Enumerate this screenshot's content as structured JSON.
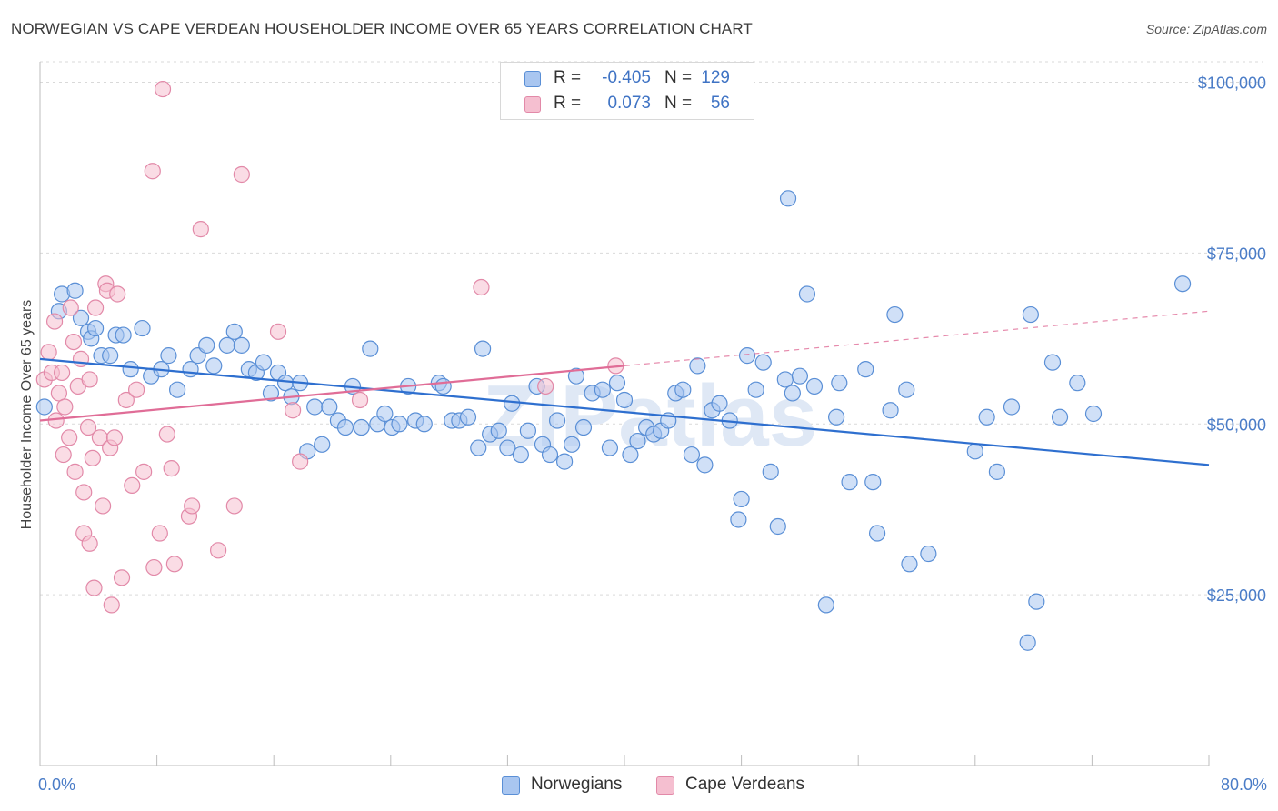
{
  "header": {
    "title": "NORWEGIAN VS CAPE VERDEAN HOUSEHOLDER INCOME OVER 65 YEARS CORRELATION CHART",
    "source": "Source: ZipAtlas.com"
  },
  "legend": {
    "rows": [
      {
        "r_label": "R =",
        "r_value": "-0.405",
        "n_label": "N =",
        "n_value": "129"
      },
      {
        "r_label": "R =",
        "r_value": "0.073",
        "n_label": "N =",
        "n_value": "56"
      }
    ],
    "bottom": [
      "Norwegians",
      "Cape Verdeans"
    ]
  },
  "colors": {
    "blue_fill": "#a9c6f0",
    "blue_stroke": "#5a8fd6",
    "blue_line": "#2e6fcf",
    "pink_fill": "#f5bfd0",
    "pink_stroke": "#e289a8",
    "pink_line": "#e06d97",
    "tick_text": "#4a7cc7",
    "grid": "#d9d9d9"
  },
  "chart_data": {
    "type": "scatter",
    "title": "NORWEGIAN VS CAPE VERDEAN HOUSEHOLDER INCOME OVER 65 YEARS CORRELATION CHART",
    "xlabel": "",
    "ylabel": "Householder Income Over 65 years",
    "xlim": [
      0,
      80
    ],
    "ylim": [
      0,
      103000
    ],
    "x_tick_labels": [
      "0.0%",
      "80.0%"
    ],
    "y_ticks": [
      25000,
      50000,
      75000,
      100000
    ],
    "y_tick_labels": [
      "$25,000",
      "$50,000",
      "$75,000",
      "$100,000"
    ],
    "grid": "horizontal dashed",
    "watermark": "ZIPatlas",
    "series": [
      {
        "name": "Norwegians",
        "r": -0.405,
        "n": 129,
        "trend": {
          "x": [
            0,
            80
          ],
          "y": [
            59500,
            44000
          ],
          "dashed_from": null
        },
        "points": [
          [
            0.3,
            52500
          ],
          [
            1.3,
            66500
          ],
          [
            1.5,
            69000
          ],
          [
            2.4,
            69500
          ],
          [
            2.8,
            65500
          ],
          [
            3.3,
            63500
          ],
          [
            3.5,
            62500
          ],
          [
            3.8,
            64000
          ],
          [
            4.2,
            60000
          ],
          [
            4.8,
            60000
          ],
          [
            5.2,
            63000
          ],
          [
            5.7,
            63000
          ],
          [
            6.2,
            58000
          ],
          [
            7.0,
            64000
          ],
          [
            7.6,
            57000
          ],
          [
            8.3,
            58000
          ],
          [
            8.8,
            60000
          ],
          [
            9.4,
            55000
          ],
          [
            10.3,
            58000
          ],
          [
            10.8,
            60000
          ],
          [
            11.4,
            61500
          ],
          [
            11.9,
            58500
          ],
          [
            12.8,
            61500
          ],
          [
            13.3,
            63500
          ],
          [
            13.8,
            61500
          ],
          [
            14.3,
            58000
          ],
          [
            14.8,
            57500
          ],
          [
            15.3,
            59000
          ],
          [
            15.8,
            54500
          ],
          [
            16.3,
            57500
          ],
          [
            16.8,
            56000
          ],
          [
            17.2,
            54000
          ],
          [
            17.8,
            56000
          ],
          [
            18.3,
            46000
          ],
          [
            18.8,
            52500
          ],
          [
            19.3,
            47000
          ],
          [
            19.8,
            52500
          ],
          [
            20.4,
            50500
          ],
          [
            20.9,
            49500
          ],
          [
            21.4,
            55500
          ],
          [
            22.0,
            49500
          ],
          [
            22.6,
            61000
          ],
          [
            23.1,
            50000
          ],
          [
            23.6,
            51500
          ],
          [
            24.1,
            49500
          ],
          [
            24.6,
            50000
          ],
          [
            25.2,
            55500
          ],
          [
            25.7,
            50500
          ],
          [
            26.3,
            50000
          ],
          [
            27.3,
            56000
          ],
          [
            27.6,
            55500
          ],
          [
            28.2,
            50500
          ],
          [
            28.7,
            50500
          ],
          [
            29.3,
            51000
          ],
          [
            30.0,
            46500
          ],
          [
            30.3,
            61000
          ],
          [
            30.8,
            48500
          ],
          [
            31.4,
            49000
          ],
          [
            32.0,
            46500
          ],
          [
            32.3,
            53000
          ],
          [
            32.9,
            45500
          ],
          [
            33.4,
            49000
          ],
          [
            34.0,
            55500
          ],
          [
            34.4,
            47000
          ],
          [
            34.9,
            45500
          ],
          [
            35.4,
            50500
          ],
          [
            35.9,
            44500
          ],
          [
            36.4,
            47000
          ],
          [
            36.7,
            57000
          ],
          [
            37.2,
            49500
          ],
          [
            37.8,
            54500
          ],
          [
            38.5,
            55000
          ],
          [
            39.0,
            46500
          ],
          [
            39.5,
            56000
          ],
          [
            40.0,
            53500
          ],
          [
            40.4,
            45500
          ],
          [
            40.9,
            47500
          ],
          [
            41.5,
            49500
          ],
          [
            42.0,
            48500
          ],
          [
            42.5,
            49000
          ],
          [
            43.0,
            50500
          ],
          [
            43.5,
            54500
          ],
          [
            44.0,
            55000
          ],
          [
            44.6,
            45500
          ],
          [
            45.0,
            58500
          ],
          [
            45.5,
            44000
          ],
          [
            46.0,
            52000
          ],
          [
            46.5,
            53000
          ],
          [
            47.2,
            50500
          ],
          [
            47.8,
            36000
          ],
          [
            48.0,
            39000
          ],
          [
            48.4,
            60000
          ],
          [
            49.0,
            55000
          ],
          [
            49.5,
            59000
          ],
          [
            50.0,
            43000
          ],
          [
            50.5,
            35000
          ],
          [
            51.0,
            56500
          ],
          [
            51.2,
            83000
          ],
          [
            51.5,
            54500
          ],
          [
            52.0,
            57000
          ],
          [
            52.5,
            69000
          ],
          [
            53.0,
            55500
          ],
          [
            53.8,
            23500
          ],
          [
            54.5,
            51000
          ],
          [
            54.7,
            56000
          ],
          [
            55.4,
            41500
          ],
          [
            56.5,
            58000
          ],
          [
            57.0,
            41500
          ],
          [
            57.3,
            34000
          ],
          [
            58.2,
            52000
          ],
          [
            58.5,
            66000
          ],
          [
            59.3,
            55000
          ],
          [
            59.5,
            29500
          ],
          [
            60.8,
            31000
          ],
          [
            64.0,
            46000
          ],
          [
            64.8,
            51000
          ],
          [
            65.5,
            43000
          ],
          [
            66.5,
            52500
          ],
          [
            67.8,
            66000
          ],
          [
            68.2,
            24000
          ],
          [
            67.6,
            18000
          ],
          [
            69.3,
            59000
          ],
          [
            69.8,
            51000
          ],
          [
            71.0,
            56000
          ],
          [
            72.1,
            51500
          ],
          [
            78.2,
            70500
          ]
        ]
      },
      {
        "name": "Cape Verdeans",
        "r": 0.073,
        "n": 56,
        "trend": {
          "x": [
            0,
            80
          ],
          "y": [
            50500,
            66500
          ],
          "dashed_from": 40
        },
        "points": [
          [
            0.3,
            56500
          ],
          [
            0.6,
            60500
          ],
          [
            0.8,
            57500
          ],
          [
            1.0,
            65000
          ],
          [
            1.1,
            50500
          ],
          [
            1.3,
            54500
          ],
          [
            1.5,
            57500
          ],
          [
            1.7,
            52500
          ],
          [
            1.6,
            45500
          ],
          [
            2.0,
            48000
          ],
          [
            2.1,
            67000
          ],
          [
            2.3,
            62000
          ],
          [
            2.4,
            43000
          ],
          [
            2.6,
            55500
          ],
          [
            2.8,
            59500
          ],
          [
            3.0,
            40000
          ],
          [
            3.0,
            34000
          ],
          [
            3.3,
            49500
          ],
          [
            3.4,
            56500
          ],
          [
            3.4,
            32500
          ],
          [
            3.6,
            45000
          ],
          [
            3.7,
            26000
          ],
          [
            3.8,
            67000
          ],
          [
            4.1,
            48000
          ],
          [
            4.3,
            38000
          ],
          [
            4.5,
            70500
          ],
          [
            4.6,
            69500
          ],
          [
            4.8,
            46500
          ],
          [
            4.9,
            23500
          ],
          [
            5.1,
            48000
          ],
          [
            5.3,
            69000
          ],
          [
            5.6,
            27500
          ],
          [
            5.9,
            53500
          ],
          [
            6.3,
            41000
          ],
          [
            6.6,
            55000
          ],
          [
            7.1,
            43000
          ],
          [
            7.7,
            87000
          ],
          [
            7.8,
            29000
          ],
          [
            8.2,
            34000
          ],
          [
            8.4,
            99000
          ],
          [
            8.7,
            48500
          ],
          [
            9.0,
            43500
          ],
          [
            9.2,
            29500
          ],
          [
            10.2,
            36500
          ],
          [
            10.4,
            38000
          ],
          [
            11.0,
            78500
          ],
          [
            12.2,
            31500
          ],
          [
            13.3,
            38000
          ],
          [
            13.8,
            86500
          ],
          [
            16.3,
            63500
          ],
          [
            17.3,
            52000
          ],
          [
            17.8,
            44500
          ],
          [
            21.9,
            53500
          ],
          [
            30.2,
            70000
          ],
          [
            34.6,
            55500
          ],
          [
            39.4,
            58500
          ]
        ]
      }
    ]
  }
}
